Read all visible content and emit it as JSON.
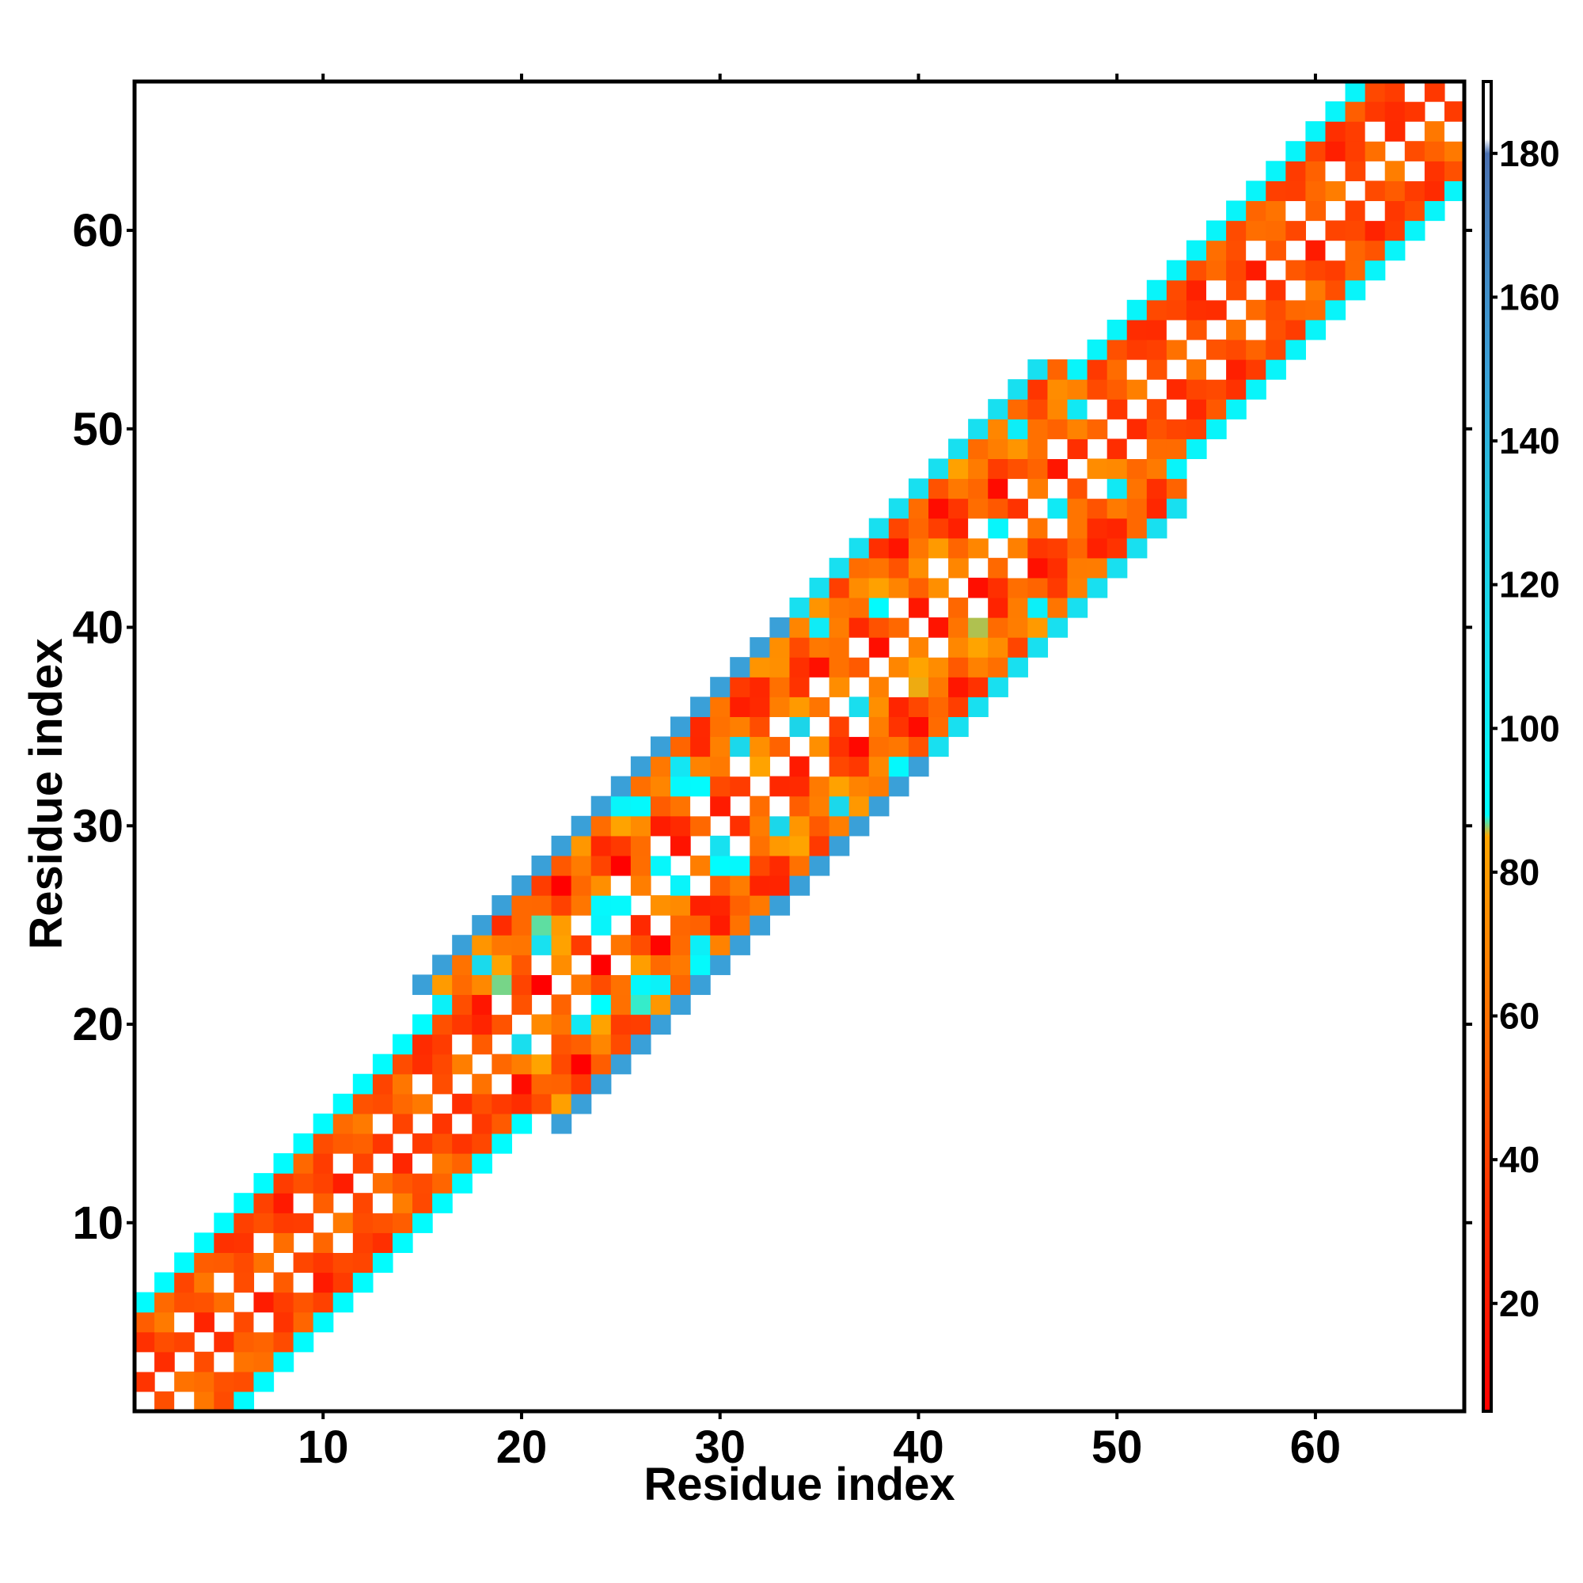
{
  "chart_data": {
    "type": "heatmap",
    "xlabel": "Residue index",
    "ylabel": "Residue index",
    "xlim": [
      0.5,
      67.5
    ],
    "ylim": [
      0.5,
      67.5
    ],
    "x_ticks": [
      10,
      20,
      30,
      40,
      50,
      60
    ],
    "y_ticks": [
      10,
      20,
      30,
      40,
      50,
      60
    ],
    "colorbar": {
      "range": [
        5,
        190
      ],
      "ticks": [
        20,
        40,
        60,
        80,
        100,
        120,
        140,
        160,
        180
      ],
      "stops": [
        {
          "value": 5,
          "color": "#ff0000"
        },
        {
          "value": 35,
          "color": "#ff3300"
        },
        {
          "value": 55,
          "color": "#ff6600"
        },
        {
          "value": 85,
          "color": "#ffa500"
        },
        {
          "value": 88,
          "color": "#00ffff"
        },
        {
          "value": 110,
          "color": "#18e0f0"
        },
        {
          "value": 130,
          "color": "#20c8e0"
        },
        {
          "value": 150,
          "color": "#3aa0d8"
        },
        {
          "value": 180,
          "color": "#4a70b0"
        },
        {
          "value": 182,
          "color": "#ffffff"
        },
        {
          "value": 190,
          "color": "#ffffff"
        }
      ]
    },
    "band_profile": [
      {
        "start": 1,
        "end": 18,
        "half_width": 5,
        "center_value": 45,
        "amplitude": 25,
        "edge_value": 90
      },
      {
        "start": 19,
        "end": 37,
        "half_width": 7,
        "center_value": 60,
        "amplitude": 60,
        "edge_value": 150
      },
      {
        "start": 38,
        "end": 50,
        "half_width": 7,
        "center_value": 55,
        "amplitude": 50,
        "edge_value": 110
      },
      {
        "start": 51,
        "end": 67,
        "half_width": 5,
        "center_value": 45,
        "amplitude": 25,
        "edge_value": 95
      }
    ]
  }
}
